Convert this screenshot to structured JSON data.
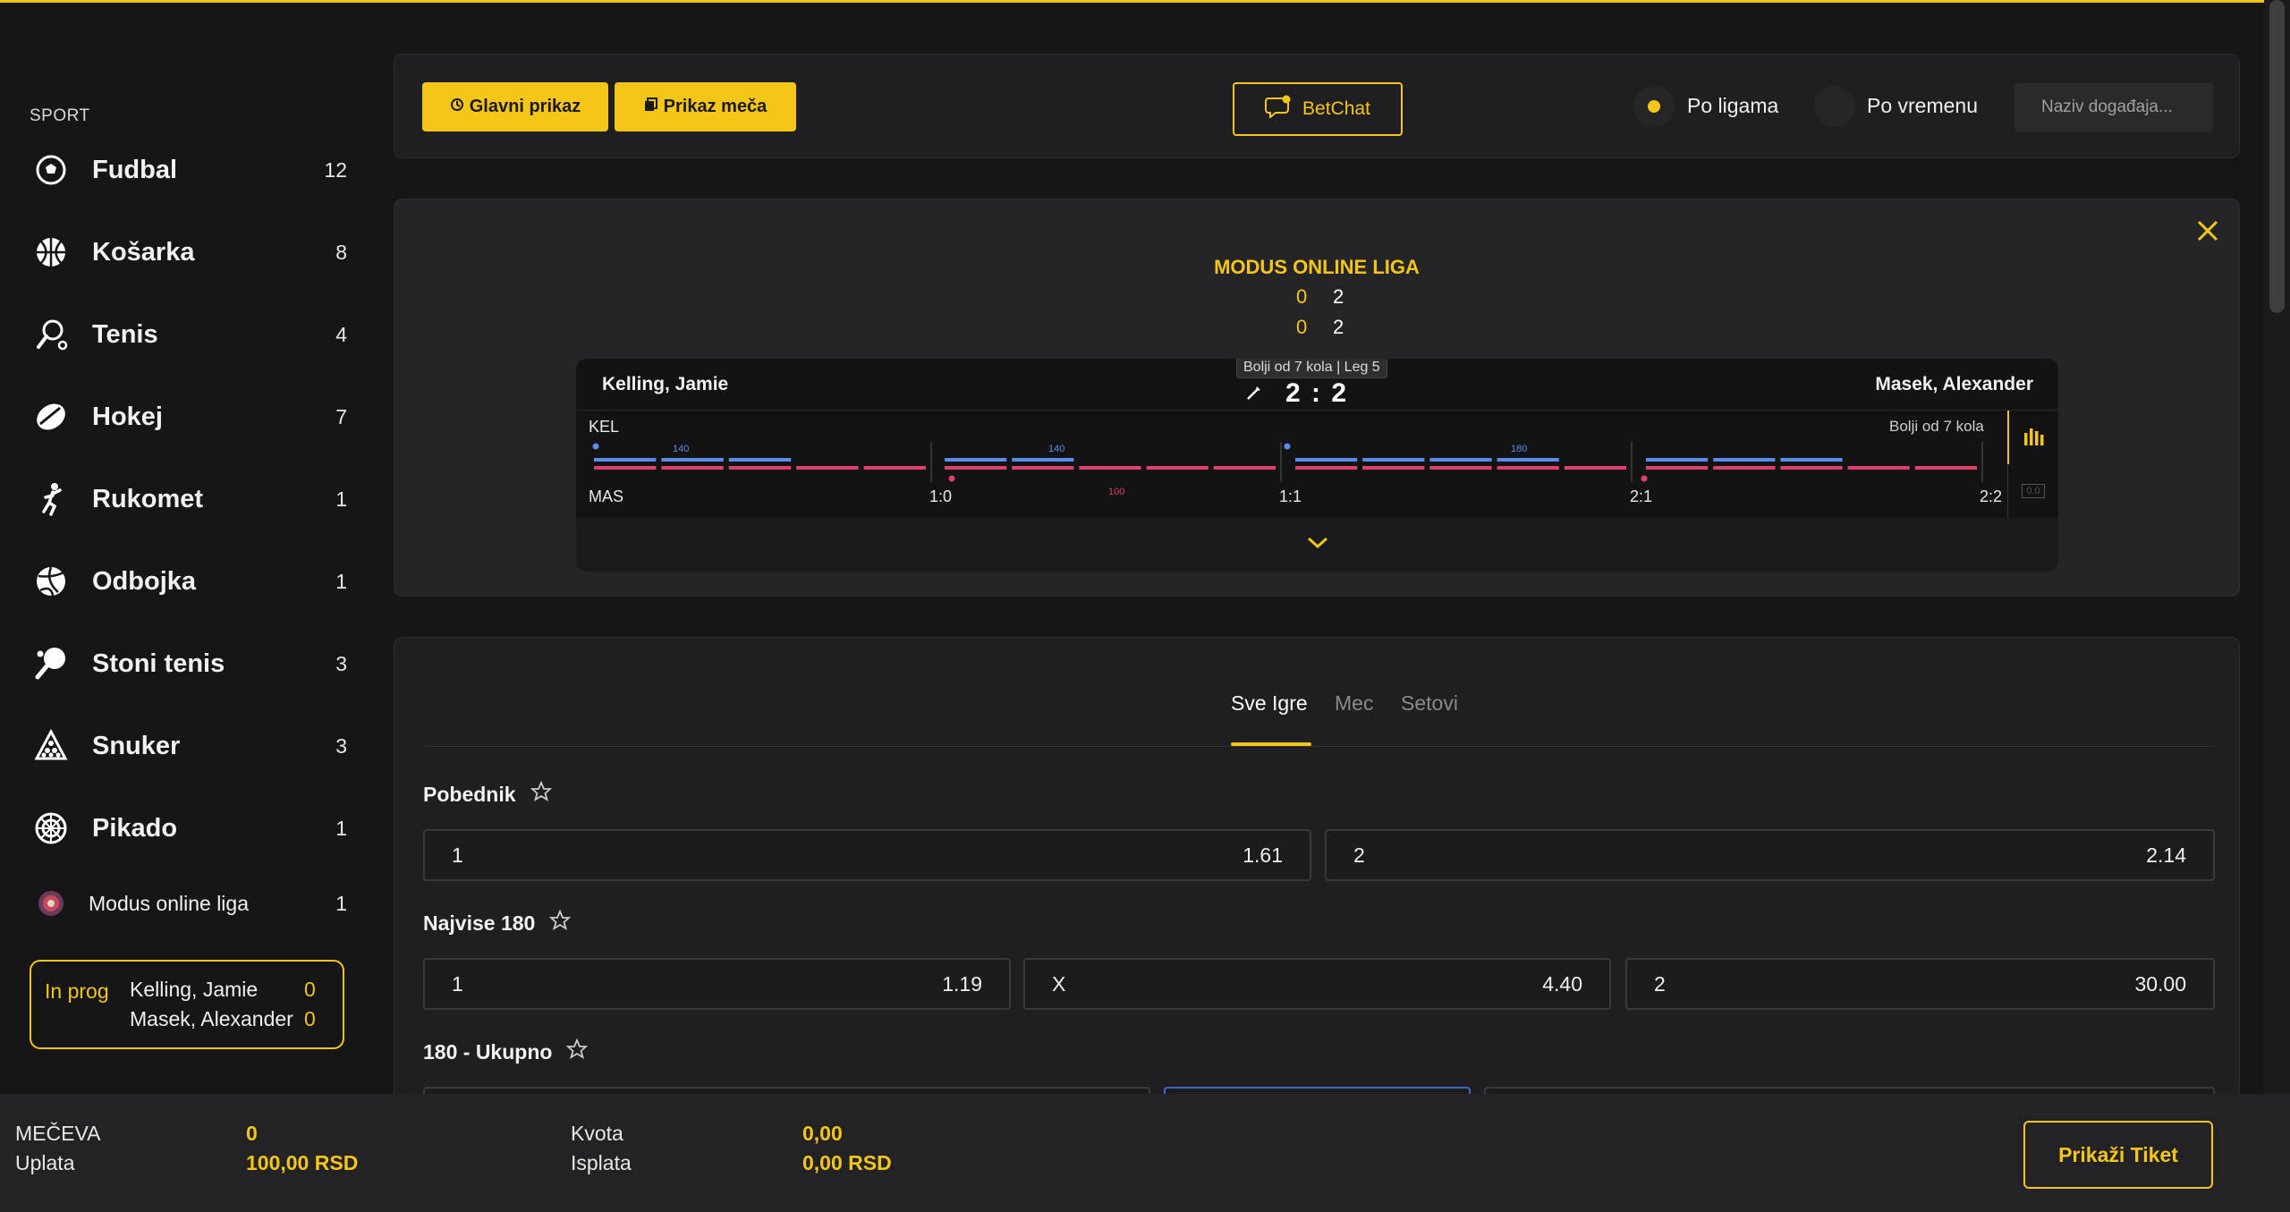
{
  "colors": {
    "accent": "#f5c518",
    "blue": "#5b8de8",
    "red": "#e0416a"
  },
  "sidebar": {
    "heading": "SPORT",
    "items": [
      {
        "icon": "soccer-ball-icon",
        "label": "Fudbal",
        "count": "12"
      },
      {
        "icon": "basketball-icon",
        "label": "Košarka",
        "count": "8"
      },
      {
        "icon": "tennis-icon",
        "label": "Tenis",
        "count": "4"
      },
      {
        "icon": "hockey-puck-icon",
        "label": "Hokej",
        "count": "7"
      },
      {
        "icon": "handball-icon",
        "label": "Rukomet",
        "count": "1"
      },
      {
        "icon": "volleyball-icon",
        "label": "Odbojka",
        "count": "1"
      },
      {
        "icon": "table-tennis-icon",
        "label": "Stoni tenis",
        "count": "3"
      },
      {
        "icon": "snooker-icon",
        "label": "Snuker",
        "count": "3"
      },
      {
        "icon": "darts-icon",
        "label": "Pikado",
        "count": "1"
      },
      {
        "icon": "league-logo-icon",
        "label": "Modus online liga",
        "count": "1"
      }
    ],
    "in_progress": {
      "tag": "In prog",
      "player1": "Kelling, Jamie",
      "score1": "0",
      "player2": "Masek, Alexander",
      "score2": "0"
    }
  },
  "topbar": {
    "main_view": "Glavni prikaz",
    "match_view": "Prikaz meča",
    "betchat": "BetChat",
    "by_league": "Po ligama",
    "by_time": "Po vremenu",
    "search_placeholder": "Naziv događaja..."
  },
  "match": {
    "league": "MODUS ONLINE LIGA",
    "row1": {
      "home": "0",
      "away": "2"
    },
    "row2": {
      "home": "0",
      "away": "2"
    },
    "player_home": "Kelling, Jamie",
    "player_away": "Masek, Alexander",
    "leg_info": "Bolji od 7 kola | Leg 5",
    "score": "2 : 2",
    "format": "Bolji od 7 kola",
    "timeline": {
      "home_abbr": "KEL",
      "away_abbr": "MAS",
      "leg_scores": [
        "1:0",
        "1:1",
        "2:1",
        "2:2"
      ],
      "home_markers": [
        "140",
        "140",
        "180"
      ],
      "away_markers": [
        "100"
      ]
    },
    "alt_icon_label": "0.0"
  },
  "markets": {
    "tabs": [
      "Sve Igre",
      "Mec",
      "Setovi"
    ],
    "winner": {
      "title": "Pobednik",
      "options": [
        {
          "label": "1",
          "odd": "1.61"
        },
        {
          "label": "2",
          "odd": "2.14"
        }
      ]
    },
    "most180": {
      "title": "Najvise 180",
      "options": [
        {
          "label": "1",
          "odd": "1.19"
        },
        {
          "label": "X",
          "odd": "4.40"
        },
        {
          "label": "2",
          "odd": "30.00"
        }
      ]
    },
    "total180": {
      "title": "180 - Ukupno"
    }
  },
  "footer": {
    "matches_label": "MEČEVA",
    "matches_value": "0",
    "stake_label": "Uplata",
    "stake_value": "100,00 RSD",
    "odds_label": "Kvota",
    "odds_value": "0,00",
    "payout_label": "Isplata",
    "payout_value": "0,00 RSD",
    "ticket_button": "Prikaži Tiket"
  }
}
